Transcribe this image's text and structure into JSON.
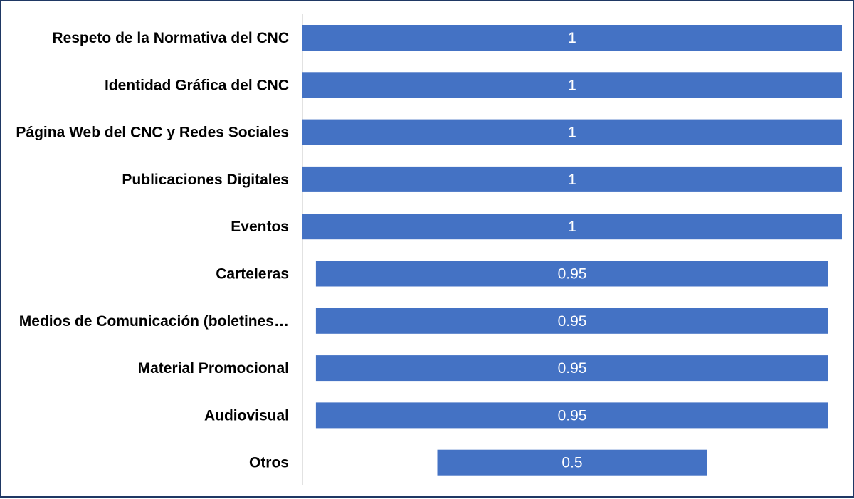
{
  "chart_data": {
    "type": "bar",
    "orientation": "horizontal-diverging",
    "categories": [
      "Respeto de la Normativa del CNC",
      "Identidad Gráfica del CNC",
      "Página Web del CNC y Redes Sociales",
      "Publicaciones Digitales",
      "Eventos",
      "Carteleras",
      "Medios de Comunicación (boletines…",
      "Material Promocional",
      "Audiovisual",
      "Otros"
    ],
    "values": [
      1,
      1,
      1,
      1,
      1,
      0.95,
      0.95,
      0.95,
      0.95,
      0.5
    ],
    "value_labels": [
      "1",
      "1",
      "1",
      "1",
      "1",
      "0.95",
      "0.95",
      "0.95",
      "0.95",
      "0.5"
    ],
    "xlim": [
      0,
      1
    ],
    "grid": false,
    "legend": "none",
    "title": "",
    "xlabel": "",
    "ylabel": ""
  },
  "colors": {
    "bar": "#4472c4",
    "bar_label": "#ffffff",
    "category_label": "#000000",
    "axis_line": "#d9d9d9",
    "border": "#1f3864"
  }
}
